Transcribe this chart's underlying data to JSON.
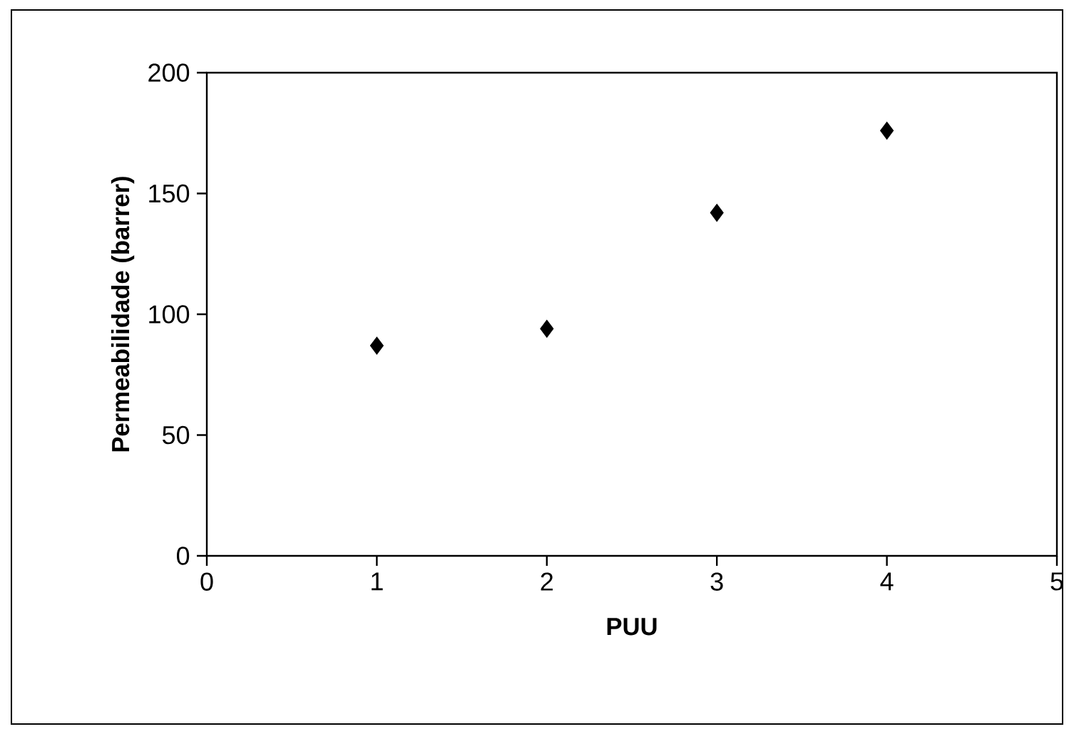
{
  "chart_data": {
    "type": "scatter",
    "xlabel": "PUU",
    "ylabel": "Permeabilidade (barrer)",
    "x": [
      1,
      2,
      3,
      4
    ],
    "values": [
      87,
      94,
      142,
      176
    ],
    "color": "#000000",
    "marker": "diamond",
    "xlim": [
      0,
      5
    ],
    "ylim": [
      0,
      200
    ],
    "xticks": [
      0,
      1,
      2,
      3,
      4,
      5
    ],
    "yticks": [
      0,
      50,
      100,
      150,
      200
    ]
  }
}
